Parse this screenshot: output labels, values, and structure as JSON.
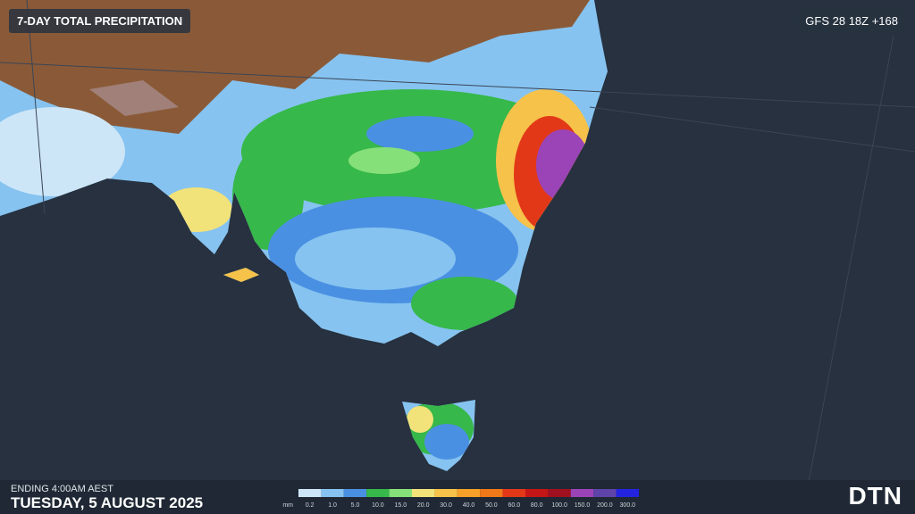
{
  "header": {
    "title": "7-DAY TOTAL PRECIPITATION",
    "model": "GFS 28 18Z +168"
  },
  "footer": {
    "ending": "ENDING 4:00AM AEST",
    "date": "TUESDAY, 5 AUGUST 2025",
    "logo": "DTN"
  },
  "legend": {
    "unit": "mm",
    "bins": [
      {
        "label": "0.2",
        "color": "#cde6f7"
      },
      {
        "label": "1.0",
        "color": "#86c3f0"
      },
      {
        "label": "5.0",
        "color": "#4a90e2"
      },
      {
        "label": "10.0",
        "color": "#36b84a"
      },
      {
        "label": "15.0",
        "color": "#86e07a"
      },
      {
        "label": "20.0",
        "color": "#f2e27a"
      },
      {
        "label": "30.0",
        "color": "#f6c24a"
      },
      {
        "label": "40.0",
        "color": "#f5a028"
      },
      {
        "label": "50.0",
        "color": "#f07818"
      },
      {
        "label": "60.0",
        "color": "#e23818"
      },
      {
        "label": "80.0",
        "color": "#c41616"
      },
      {
        "label": "100.0",
        "color": "#a01020"
      },
      {
        "label": "150.0",
        "color": "#9a44b8"
      },
      {
        "label": "200.0",
        "color": "#5e44a8"
      },
      {
        "label": "300.0",
        "color": "#2424e0"
      }
    ]
  }
}
